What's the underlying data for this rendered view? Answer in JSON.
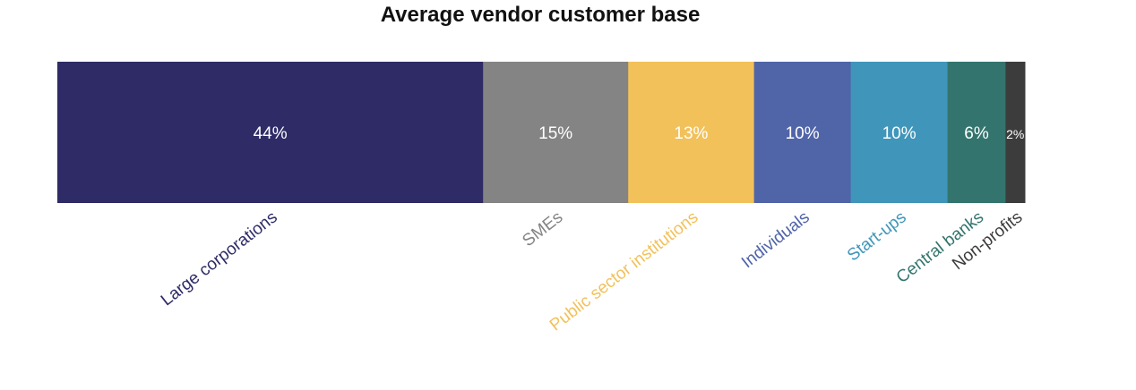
{
  "chart_data": {
    "type": "bar",
    "orientation": "horizontal-stacked",
    "title": "Average vendor customer base",
    "xlabel": "",
    "ylabel": "",
    "categories": [
      "Large corporations",
      "SMEs",
      "Public sector institutions",
      "Individuals",
      "Start-ups",
      "Central banks",
      "Non-profits"
    ],
    "values": [
      44,
      15,
      13,
      10,
      10,
      6,
      2
    ],
    "value_labels": [
      "44%",
      "15%",
      "13%",
      "10%",
      "10%",
      "6%",
      "2%"
    ],
    "colors": [
      "#2e2b66",
      "#848484",
      "#f2c15a",
      "#5064a8",
      "#4096ba",
      "#33756e",
      "#3c3c3c"
    ],
    "grid": false,
    "legend": "none"
  }
}
